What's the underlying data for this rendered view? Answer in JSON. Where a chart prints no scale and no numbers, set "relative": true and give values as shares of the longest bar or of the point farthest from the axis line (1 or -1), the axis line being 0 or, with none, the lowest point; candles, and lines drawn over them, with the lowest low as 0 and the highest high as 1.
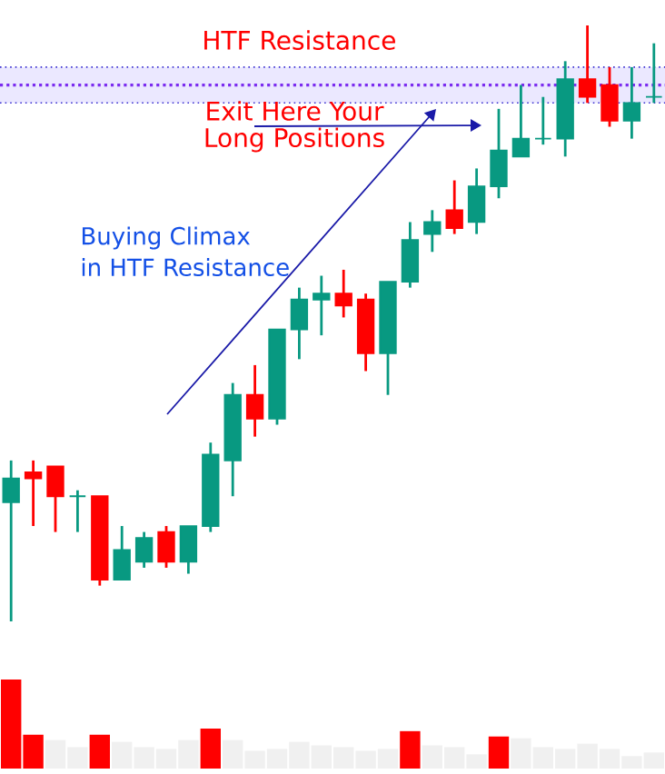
{
  "chart_data": [
    {
      "type": "candlestick",
      "relative": true,
      "categories": [
        null,
        null,
        null,
        null,
        null,
        null,
        null,
        null,
        null,
        null,
        null,
        null,
        null,
        null,
        null,
        null,
        null,
        null,
        null,
        null,
        null,
        null,
        null,
        null,
        null,
        null,
        null,
        null,
        null,
        null
      ],
      "ohlc": [
        [
          0.2,
          0.27,
          0,
          0.24
        ],
        [
          0.25,
          0.27,
          0.16,
          0.24
        ],
        [
          0.26,
          0.26,
          0.15,
          0.21
        ],
        [
          0.21,
          0.22,
          0.15,
          0.21
        ],
        [
          0.21,
          0.21,
          0.06,
          0.07
        ],
        [
          0.07,
          0.16,
          0.07,
          0.12
        ],
        [
          0.1,
          0.15,
          0.09,
          0.14
        ],
        [
          0.15,
          0.16,
          0.09,
          0.1
        ],
        [
          0.1,
          0.16,
          0.08,
          0.16
        ],
        [
          0.16,
          0.3,
          0.15,
          0.28
        ],
        [
          0.27,
          0.4,
          0.21,
          0.38
        ],
        [
          0.38,
          0.43,
          0.31,
          0.34
        ],
        [
          0.34,
          0.49,
          0.33,
          0.49
        ],
        [
          0.49,
          0.56,
          0.44,
          0.54
        ],
        [
          0.54,
          0.58,
          0.48,
          0.55
        ],
        [
          0.55,
          0.59,
          0.51,
          0.53
        ],
        [
          0.54,
          0.55,
          0.42,
          0.45
        ],
        [
          0.45,
          0.57,
          0.38,
          0.57
        ],
        [
          0.57,
          0.67,
          0.56,
          0.64
        ],
        [
          0.65,
          0.69,
          0.62,
          0.67
        ],
        [
          0.69,
          0.74,
          0.65,
          0.66
        ],
        [
          0.67,
          0.76,
          0.65,
          0.73
        ],
        [
          0.73,
          0.86,
          0.71,
          0.79
        ],
        [
          0.78,
          0.9,
          0.78,
          0.81
        ],
        [
          0.81,
          0.88,
          0.8,
          0.81
        ],
        [
          0.81,
          0.94,
          0.78,
          0.91
        ],
        [
          0.91,
          1,
          0.87,
          0.88
        ],
        [
          0.9,
          0.93,
          0.83,
          0.84
        ],
        [
          0.84,
          0.93,
          0.81,
          0.87
        ],
        [
          0.88,
          0.97,
          0.87,
          0.88
        ]
      ],
      "colors": [
        "#089981",
        "#ff0000",
        "#ff0000",
        "#089981",
        "#ff0000",
        "#089981",
        "#089981",
        "#ff0000",
        "#089981",
        "#089981",
        "#089981",
        "#ff0000",
        "#089981",
        "#089981",
        "#089981",
        "#ff0000",
        "#ff0000",
        "#089981",
        "#089981",
        "#089981",
        "#ff0000",
        "#089981",
        "#089981",
        "#089981",
        "#089981",
        "#089981",
        "#ff0000",
        "#ff0000",
        "#089981",
        "#089981"
      ],
      "bands": [
        {
          "axis": "y",
          "from": 0.87,
          "to": 0.93,
          "label": "HTF Resistance",
          "color": "#ebe8ff"
        }
      ],
      "ref_lines": [
        {
          "axis": "y",
          "value": 0.9,
          "color": "#7b2cf0",
          "line_style": "dotted"
        },
        {
          "axis": "y",
          "value": 0.87,
          "color": "#3a2fd0",
          "line_style": "dotted"
        },
        {
          "axis": "y",
          "value": 0.93,
          "color": "#3a2fd0",
          "line_style": "dotted"
        }
      ],
      "annotations": [
        "Exit Here Your",
        "Long Positions",
        "Buying Climax",
        "in HTF Resistance"
      ]
    },
    {
      "type": "bar",
      "relative": true,
      "categories": [
        null,
        null,
        null,
        null,
        null,
        null,
        null,
        null,
        null,
        null,
        null,
        null,
        null,
        null,
        null,
        null,
        null,
        null,
        null,
        null,
        null,
        null,
        null,
        null,
        null,
        null,
        null,
        null,
        null,
        null
      ],
      "values": [
        1,
        0.38,
        0.32,
        0.24,
        0.38,
        0.3,
        0.24,
        0.22,
        0.32,
        0.45,
        0.32,
        0.2,
        0.22,
        0.3,
        0.26,
        0.24,
        0.2,
        0.22,
        0.42,
        0.26,
        0.24,
        0.16,
        0.36,
        0.34,
        0.24,
        0.22,
        0.28,
        0.22,
        0.14,
        0.18
      ],
      "colors": [
        "#ff0000",
        "#ff0000",
        "#f0f0f0",
        "#f0f0f0",
        "#ff0000",
        "#f0f0f0",
        "#f0f0f0",
        "#f0f0f0",
        "#f0f0f0",
        "#ff0000",
        "#f0f0f0",
        "#f0f0f0",
        "#f0f0f0",
        "#f0f0f0",
        "#f0f0f0",
        "#f0f0f0",
        "#f0f0f0",
        "#f0f0f0",
        "#ff0000",
        "#f0f0f0",
        "#f0f0f0",
        "#f0f0f0",
        "#ff0000",
        "#f0f0f0",
        "#f0f0f0",
        "#f0f0f0",
        "#f0f0f0",
        "#f0f0f0",
        "#f0f0f0",
        "#f0f0f0"
      ]
    }
  ]
}
